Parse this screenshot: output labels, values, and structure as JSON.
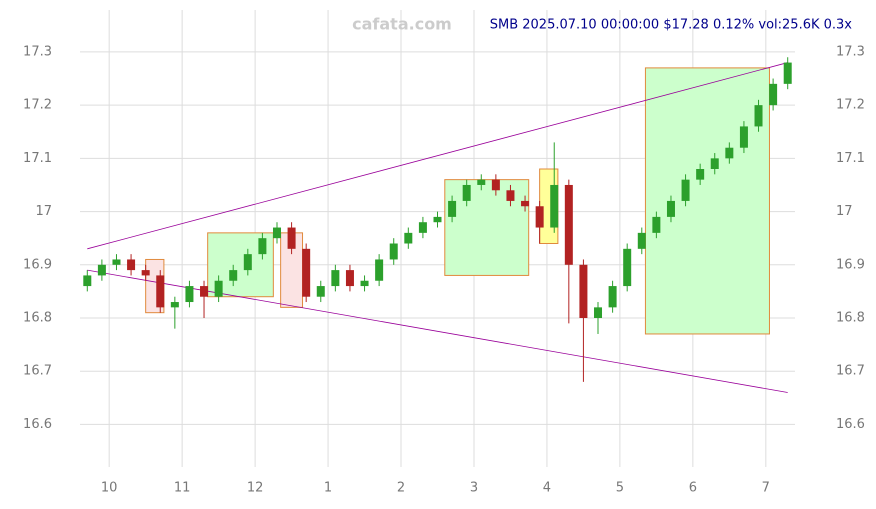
{
  "chart_data": {
    "type": "candlestick",
    "title": "SMB 2025.07.10 00:00:00 $17.28 0.12% vol:25.6K 0.3x",
    "watermark": "cafata.com",
    "x": [
      9.7,
      9.9,
      10.1,
      10.3,
      10.5,
      10.7,
      10.9,
      11.1,
      11.3,
      11.5,
      11.7,
      11.9,
      12.1,
      12.3,
      12.5,
      12.7,
      12.9,
      13.1,
      13.3,
      13.5,
      13.7,
      13.9,
      14.1,
      14.3,
      14.5,
      14.7,
      14.9,
      15.1,
      15.3,
      15.5,
      15.7,
      15.9,
      16.1,
      16.3,
      16.5,
      16.7,
      16.9,
      17.1,
      17.3,
      17.5,
      17.7,
      17.9,
      18.1,
      18.3,
      18.5,
      18.7,
      18.9,
      19.1,
      19.3
    ],
    "open": [
      16.86,
      16.88,
      16.9,
      16.91,
      16.89,
      16.88,
      16.82,
      16.83,
      16.86,
      16.84,
      16.87,
      16.89,
      16.92,
      16.95,
      16.97,
      16.93,
      16.84,
      16.86,
      16.89,
      16.86,
      16.87,
      16.91,
      16.94,
      16.96,
      16.98,
      16.99,
      17.02,
      17.05,
      17.06,
      17.04,
      17.02,
      17.01,
      16.97,
      17.05,
      16.9,
      16.8,
      16.82,
      16.86,
      16.93,
      16.96,
      16.99,
      17.02,
      17.06,
      17.08,
      17.1,
      17.12,
      17.16,
      17.2,
      17.24
    ],
    "high": [
      16.89,
      16.91,
      16.92,
      16.92,
      16.9,
      16.89,
      16.84,
      16.87,
      16.87,
      16.88,
      16.9,
      16.93,
      16.96,
      16.98,
      16.98,
      16.94,
      16.87,
      16.9,
      16.9,
      16.88,
      16.92,
      16.95,
      16.97,
      16.99,
      17.0,
      17.03,
      17.06,
      17.07,
      17.07,
      17.05,
      17.03,
      17.02,
      17.13,
      17.06,
      16.91,
      16.83,
      16.87,
      16.94,
      16.97,
      17.0,
      17.03,
      17.07,
      17.09,
      17.11,
      17.13,
      17.17,
      17.21,
      17.25,
      17.29
    ],
    "low": [
      16.85,
      16.87,
      16.89,
      16.88,
      16.87,
      16.81,
      16.78,
      16.82,
      16.8,
      16.83,
      16.86,
      16.88,
      16.91,
      16.94,
      16.92,
      16.83,
      16.83,
      16.85,
      16.85,
      16.85,
      16.86,
      16.9,
      16.93,
      16.95,
      16.97,
      16.98,
      17.01,
      17.04,
      17.03,
      17.01,
      17.0,
      16.94,
      16.96,
      16.79,
      16.68,
      16.77,
      16.81,
      16.85,
      16.92,
      16.95,
      16.98,
      17.01,
      17.05,
      17.07,
      17.09,
      17.11,
      17.15,
      17.19,
      17.23
    ],
    "close": [
      16.88,
      16.9,
      16.91,
      16.89,
      16.88,
      16.82,
      16.83,
      16.86,
      16.84,
      16.87,
      16.89,
      16.92,
      16.95,
      16.97,
      16.93,
      16.84,
      16.86,
      16.89,
      16.86,
      16.87,
      16.91,
      16.94,
      16.96,
      16.98,
      16.99,
      17.02,
      17.05,
      17.06,
      17.04,
      17.02,
      17.01,
      16.97,
      17.05,
      16.9,
      16.8,
      16.82,
      16.86,
      16.93,
      16.96,
      16.99,
      17.02,
      17.06,
      17.08,
      17.1,
      17.12,
      17.16,
      17.2,
      17.24,
      17.28
    ],
    "up_color": "#2ca02c",
    "down_color": "#b22222",
    "trendlines": [
      {
        "color": "#990099",
        "x": [
          9.7,
          19.3
        ],
        "values": [
          16.93,
          17.28
        ]
      },
      {
        "color": "#990099",
        "x": [
          9.7,
          19.3
        ],
        "values": [
          16.89,
          16.66
        ]
      }
    ],
    "boxes": [
      {
        "color": "#ccffcc",
        "x": [
          11.35,
          12.25
        ],
        "values": [
          16.84,
          16.96
        ]
      },
      {
        "color": "#ccffcc",
        "x": [
          14.6,
          15.75
        ],
        "values": [
          16.88,
          17.06
        ]
      },
      {
        "color": "#ccffcc",
        "x": [
          17.35,
          19.05
        ],
        "values": [
          16.77,
          17.27
        ]
      },
      {
        "color": "#fbe3e3",
        "x": [
          10.5,
          10.75
        ],
        "values": [
          16.81,
          16.91
        ]
      },
      {
        "color": "#fbe3e3",
        "x": [
          12.35,
          12.65
        ],
        "values": [
          16.82,
          16.96
        ]
      },
      {
        "color": "#ffff99",
        "x": [
          15.9,
          16.15
        ],
        "values": [
          16.94,
          17.08
        ]
      }
    ],
    "xlim": [
      9.6,
      19.4
    ],
    "xticks": [
      10,
      11,
      12,
      {
        "value": 13,
        "label": "1"
      },
      {
        "value": 14,
        "label": "2"
      },
      {
        "value": 15,
        "label": "3"
      },
      {
        "value": 16,
        "label": "4"
      },
      {
        "value": 17,
        "label": "5"
      },
      {
        "value": 18,
        "label": "6"
      },
      {
        "value": 19,
        "label": "7"
      }
    ],
    "ylim": [
      16.52,
      17.36
    ],
    "yticks": [
      16.6,
      16.7,
      16.8,
      16.9,
      17.0,
      17.1,
      17.2,
      17.3
    ],
    "grid": true
  }
}
